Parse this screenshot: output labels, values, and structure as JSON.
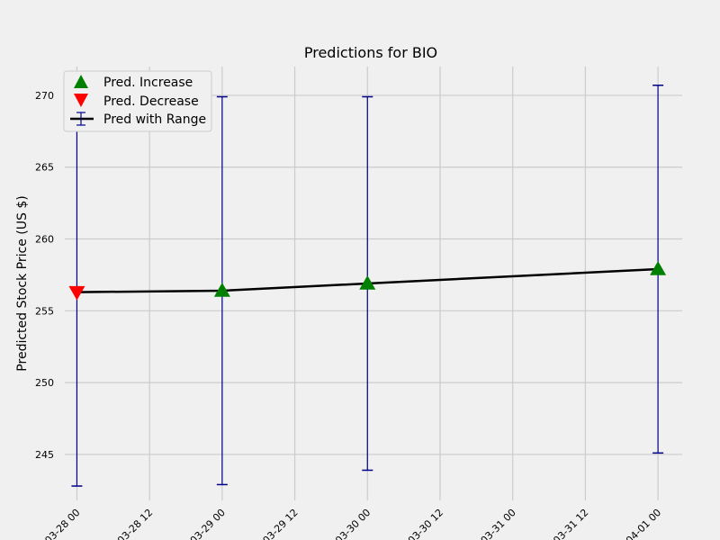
{
  "chart_data": {
    "type": "line",
    "title": "Predictions for BIO",
    "xlabel": "",
    "ylabel": "Predicted Stock Price (US $)",
    "x_ticks": [
      "03-28 00",
      "03-28 12",
      "03-29 00",
      "03-29 12",
      "03-30 00",
      "03-30 12",
      "03-31 00",
      "03-31 12",
      "04-01 00"
    ],
    "y_ticks": [
      245,
      250,
      255,
      260,
      265,
      270
    ],
    "xlim": [
      "03-27 22",
      "04-01 04"
    ],
    "ylim": [
      241.8,
      272
    ],
    "grid": true,
    "legend_position": "top-left",
    "legend": {
      "increase_label": "Pred. Increase",
      "decrease_label": "Pred. Decrease",
      "range_label": "Pred with Range"
    },
    "points": [
      {
        "date": "03-28 00",
        "value": 256.3,
        "low": 242.8,
        "high": 268.7,
        "direction": "decrease"
      },
      {
        "date": "03-29 00",
        "value": 256.4,
        "low": 242.9,
        "high": 269.9,
        "direction": "increase"
      },
      {
        "date": "03-30 00",
        "value": 256.9,
        "low": 243.9,
        "high": 269.9,
        "direction": "increase"
      },
      {
        "date": "04-01 00",
        "value": 257.9,
        "low": 245.1,
        "high": 270.7,
        "direction": "increase"
      }
    ],
    "colors": {
      "line": "#000000",
      "errorbar": "#00008b",
      "increase": "#008000",
      "decrease": "#ff0000",
      "grid": "#cbcbcb",
      "background": "#f0f0f0"
    }
  }
}
